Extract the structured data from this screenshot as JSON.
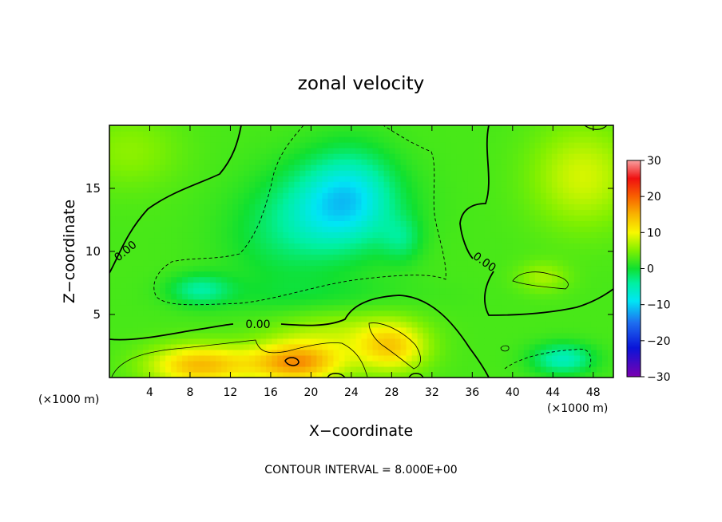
{
  "chart_data": {
    "type": "heatmap",
    "title": "zonal velocity",
    "xlabel": "X−coordinate",
    "ylabel": "Z−coordinate",
    "x_unit_left": "(×1000 m)",
    "x_unit_right": "(×1000 m)",
    "x_ticks": [
      "4",
      "8",
      "12",
      "16",
      "20",
      "24",
      "28",
      "32",
      "36",
      "40",
      "44",
      "48"
    ],
    "x_tick_values": [
      4,
      8,
      12,
      16,
      20,
      24,
      28,
      32,
      36,
      40,
      44,
      48
    ],
    "y_ticks": [
      "5",
      "10",
      "15"
    ],
    "y_tick_values": [
      5,
      10,
      15
    ],
    "xlim": [
      0,
      50
    ],
    "ylim": [
      0,
      20
    ],
    "contour_label": "0.00",
    "footer": "CONTOUR INTERVAL = 8.000E+00",
    "colorbar": {
      "ticks": [
        "30",
        "20",
        "10",
        "0",
        "−10",
        "−20",
        "−30"
      ],
      "tick_values": [
        30,
        20,
        10,
        0,
        -10,
        -20,
        -30
      ],
      "range": [
        -30,
        30
      ],
      "stops": [
        {
          "v": -30,
          "c": "#7a00b0"
        },
        {
          "v": -22,
          "c": "#0a14d8"
        },
        {
          "v": -15,
          "c": "#1e6ef0"
        },
        {
          "v": -9,
          "c": "#00e6f5"
        },
        {
          "v": -4,
          "c": "#00f0a0"
        },
        {
          "v": 0,
          "c": "#10e030"
        },
        {
          "v": 5,
          "c": "#80f000"
        },
        {
          "v": 10,
          "c": "#f8f800"
        },
        {
          "v": 15,
          "c": "#f8b400"
        },
        {
          "v": 20,
          "c": "#f86000"
        },
        {
          "v": 25,
          "c": "#f01010"
        },
        {
          "v": 30,
          "c": "#f8a0a0"
        }
      ]
    },
    "field_sources": [
      {
        "x": 22.5,
        "z": 13.5,
        "amp": -9,
        "sx": 6.0,
        "sz": 3.6
      },
      {
        "x": 24.0,
        "z": 15.0,
        "amp": -5,
        "sx": 4.0,
        "sz": 3.5
      },
      {
        "x": 29.0,
        "z": 11.0,
        "amp": -4,
        "sx": 2.0,
        "sz": 1.8
      },
      {
        "x": 17.0,
        "z": 11.0,
        "amp": -3,
        "sx": 6.0,
        "sz": 4.0
      },
      {
        "x": 9.0,
        "z": 7.0,
        "amp": -6,
        "sx": 3.0,
        "sz": 1.2
      },
      {
        "x": 20.0,
        "z": 6.5,
        "amp": -2,
        "sx": 10.0,
        "sz": 1.5
      },
      {
        "x": 9.0,
        "z": 1.0,
        "amp": 12,
        "sx": 5.0,
        "sz": 1.6
      },
      {
        "x": 18.5,
        "z": 1.2,
        "amp": 14,
        "sx": 4.5,
        "sz": 1.6
      },
      {
        "x": 28.0,
        "z": 2.5,
        "amp": 10,
        "sx": 3.5,
        "sz": 2.0
      },
      {
        "x": 22.0,
        "z": 3.5,
        "amp": 4,
        "sx": 6.0,
        "sz": 2.0
      },
      {
        "x": 45.0,
        "z": 1.5,
        "amp": -8,
        "sx": 3.0,
        "sz": 1.2
      },
      {
        "x": 43.0,
        "z": 8.0,
        "amp": 4,
        "sx": 2.5,
        "sz": 1.2
      },
      {
        "x": 47.0,
        "z": 16.0,
        "amp": 6,
        "sx": 5.0,
        "sz": 4.0
      },
      {
        "x": 2.0,
        "z": 18.0,
        "amp": 3,
        "sx": 5.0,
        "sz": 3.0
      }
    ]
  }
}
